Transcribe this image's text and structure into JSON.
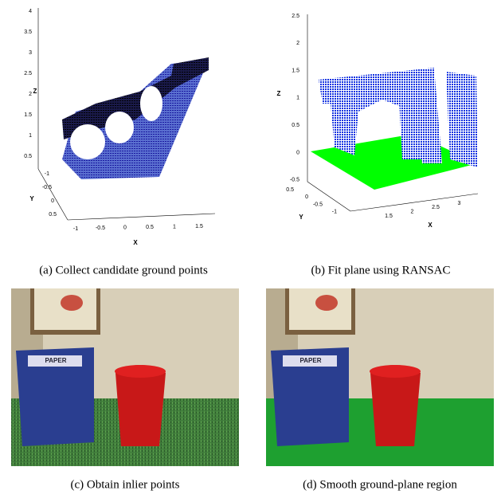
{
  "panels": [
    {
      "caption": "(a) Collect candidate ground points",
      "axes": {
        "z_label": "Z",
        "z_ticks": [
          "4",
          "3.5",
          "3",
          "2.5",
          "2",
          "1.5",
          "1",
          "0.5"
        ],
        "y_label": "Y",
        "y_ticks": [
          "-1",
          "-0.5",
          "0",
          "0.5"
        ],
        "x_label": "X",
        "x_ticks": [
          "-1",
          "-0.5",
          "0",
          "0.5",
          "1",
          "1.5"
        ]
      }
    },
    {
      "caption": "(b) Fit plane using RANSAC",
      "axes": {
        "z_label": "Z",
        "z_ticks": [
          "2.5",
          "2",
          "1.5",
          "1",
          "0.5",
          "0",
          "-0.5"
        ],
        "y_label": "Y",
        "y_ticks": [
          "0.5",
          "0",
          "-0.5",
          "-1"
        ],
        "x_label": "X",
        "x_ticks": [
          "1.5",
          "2",
          "2.5",
          "3"
        ]
      }
    },
    {
      "caption": "(c) Obtain inlier points",
      "bin_label": "PAPER"
    },
    {
      "caption": "(d) Smooth ground-plane region",
      "bin_label": "PAPER"
    }
  ]
}
